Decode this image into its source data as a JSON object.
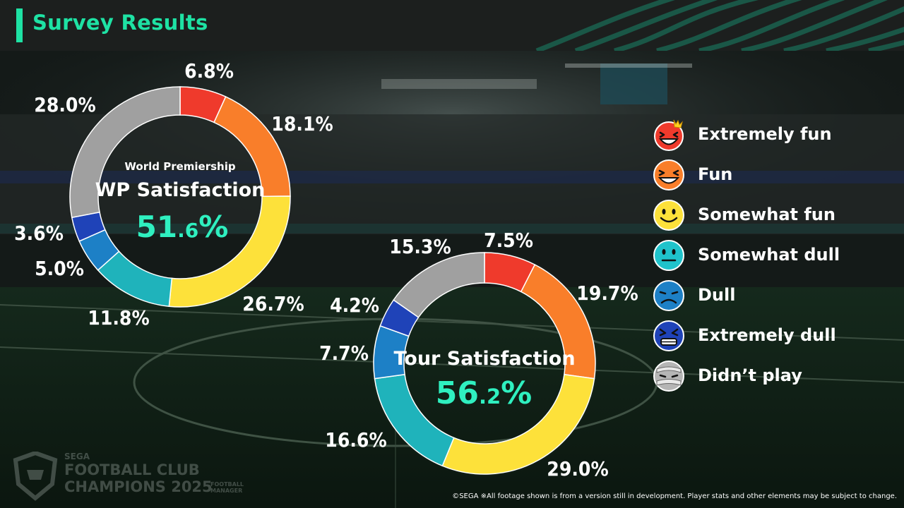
{
  "header": {
    "title": "Survey Results"
  },
  "colors": {
    "extremely_fun": "#ef3a2c",
    "fun": "#f97e2a",
    "somewhat_fun": "#fde13a",
    "somewhat_dull": "#1fb3bb",
    "dull": "#1d80c6",
    "extremely_dull": "#1f43b8",
    "didnt_play": "#a0a0a0",
    "accent": "#1ee2a4",
    "value": "#2ff0c0"
  },
  "legend": {
    "items": [
      {
        "key": "extremely_fun",
        "label": "Extremely fun",
        "icon": "laughing-crown-face-icon"
      },
      {
        "key": "fun",
        "label": "Fun",
        "icon": "grinning-face-icon"
      },
      {
        "key": "somewhat_fun",
        "label": "Somewhat fun",
        "icon": "smiling-face-icon"
      },
      {
        "key": "somewhat_dull",
        "label": "Somewhat dull",
        "icon": "neutral-face-icon"
      },
      {
        "key": "dull",
        "label": "Dull",
        "icon": "frowning-face-icon"
      },
      {
        "key": "extremely_dull",
        "label": "Extremely dull",
        "icon": "distressed-face-icon"
      },
      {
        "key": "didnt_play",
        "label": "Didn’t play",
        "icon": "bandaged-face-icon"
      }
    ]
  },
  "chart_data": [
    {
      "type": "pie",
      "subtitle": "World Premiership",
      "title": "WP Satisfaction",
      "value_main": "51",
      "value_dec": ".6",
      "value_unit": "%",
      "categories": [
        "Extremely fun",
        "Fun",
        "Somewhat fun",
        "Somewhat dull",
        "Dull",
        "Extremely dull",
        "Didn’t play"
      ],
      "values": [
        6.8,
        18.1,
        26.7,
        11.8,
        5.0,
        3.6,
        28.0
      ],
      "labels": [
        "6.8%",
        "18.1%",
        "26.7%",
        "11.8%",
        "5.0%",
        "3.6%",
        "28.0%"
      ]
    },
    {
      "type": "pie",
      "subtitle": "",
      "title": "Tour Satisfaction",
      "value_main": "56",
      "value_dec": ".2",
      "value_unit": "%",
      "categories": [
        "Extremely fun",
        "Fun",
        "Somewhat fun",
        "Somewhat dull",
        "Dull",
        "Extremely dull",
        "Didn’t play"
      ],
      "values": [
        7.5,
        19.7,
        29.0,
        16.6,
        7.7,
        4.2,
        15.3
      ],
      "labels": [
        "7.5%",
        "19.7%",
        "29.0%",
        "16.6%",
        "7.7%",
        "4.2%",
        "15.3%"
      ]
    }
  ],
  "footer": {
    "brand_sega": "SEGA",
    "brand_line1": "FOOTBALL CLUB",
    "brand_line2": "CHAMPIONS 2025",
    "brand_fm": "FOOTBALL MANAGER",
    "copyright": "©SEGA ※All footage shown is from a version still in development. Player stats and other elements may be subject to change."
  }
}
